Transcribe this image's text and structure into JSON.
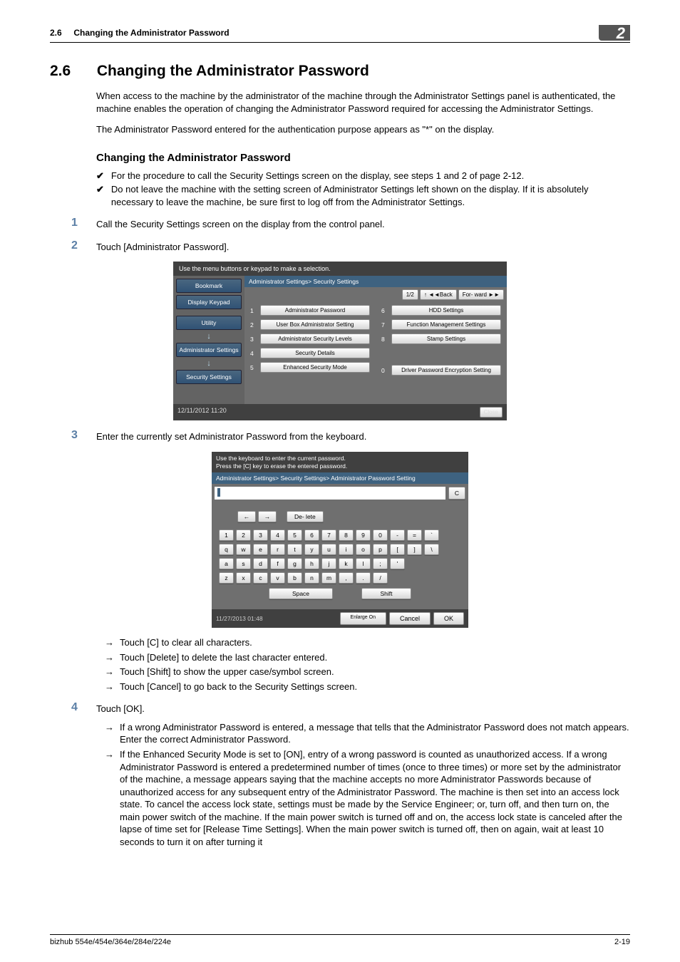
{
  "header": {
    "section_num": "2.6",
    "section_label": "Changing the Administrator Password",
    "chapter": "2"
  },
  "title": {
    "num": "2.6",
    "text": "Changing the Administrator Password"
  },
  "intro1": "When access to the machine by the administrator of the machine through the Administrator Settings panel is authenticated, the machine enables the operation of changing the Administrator Password required for accessing the Administrator Settings.",
  "intro2": "The Administrator Password entered for the authentication purpose appears as \"*\" on the display.",
  "subhead": "Changing the Administrator Password",
  "checks": [
    "For the procedure to call the Security Settings screen on the display, see steps 1 and 2 of page 2-12.",
    "Do not leave the machine with the setting screen of Administrator Settings left shown on the display. If it is absolutely necessary to leave the machine, be sure first to log off from the Administrator Settings."
  ],
  "steps": {
    "s1": "Call the Security Settings screen on the display from the control panel.",
    "s2": "Touch [Administrator Password].",
    "s3": "Enter the currently set Administrator Password from the keyboard.",
    "s4": "Touch [OK]."
  },
  "sub3": [
    "Touch [C] to clear all characters.",
    "Touch [Delete] to delete the last character entered.",
    "Touch [Shift] to show the upper case/symbol screen.",
    "Touch [Cancel] to go back to the Security Settings screen."
  ],
  "sub4": [
    "If a wrong Administrator Password is entered, a message that tells that the Administrator Password does not match appears. Enter the correct Administrator Password.",
    "If the Enhanced Security Mode is set to [ON], entry of a wrong password is counted as unauthorized access. If a wrong Administrator Password is entered a predetermined number of times (once to three times) or more set by the administrator of the machine, a message appears saying that the machine accepts no more Administrator Passwords because of unauthorized access for any subsequent entry of the Administrator Password. The machine is then set into an access lock state. To cancel the access lock state, settings must be made by the Service Engineer; or, turn off, and then turn on, the main power switch of the machine. If the main power switch is turned off and on, the access lock state is canceled after the lapse of time set for [Release Time Settings]. When the main power switch is turned off, then on again, wait at least 10 seconds to turn it on after turning it"
  ],
  "shot1": {
    "topbar": "Use the menu buttons or keypad to make a selection.",
    "tabs": {
      "bookmark": "Bookmark",
      "display_keypad": "Display Keypad",
      "utility": "Utility",
      "admin": "Administrator Settings",
      "security": "Security Settings"
    },
    "path": "Administrator Settings> Security Settings",
    "nav": {
      "page": "1/2",
      "back": "↑ ◄◄Back",
      "fwd": "For-\nward ►►"
    },
    "menu_left": [
      {
        "n": "1",
        "t": "Administrator Password"
      },
      {
        "n": "2",
        "t": "User Box Administrator\nSetting"
      },
      {
        "n": "3",
        "t": "Administrator Security\nLevels"
      },
      {
        "n": "4",
        "t": "Security Details"
      },
      {
        "n": "5",
        "t": "Enhanced Security Mode"
      }
    ],
    "menu_right": [
      {
        "n": "6",
        "t": "HDD Settings"
      },
      {
        "n": "7",
        "t": "Function Management Settings"
      },
      {
        "n": "8",
        "t": "Stamp Settings"
      },
      {
        "n": "0",
        "t": "Driver Password\nEncryption Setting"
      }
    ],
    "datetime": "12/11/2012    11:20",
    "close": "Close"
  },
  "shot2": {
    "top1": "Use the keyboard to enter the current password.",
    "top2": "Press the [C] key to erase the entered password.",
    "path": "Administrator Settings> Security Settings> Administrator Password Setting",
    "c_btn": "C",
    "nav": {
      "left": "←",
      "right": "→",
      "delete": "De-\nlete"
    },
    "row1": [
      "1",
      "2",
      "3",
      "4",
      "5",
      "6",
      "7",
      "8",
      "9",
      "0",
      "-",
      "=",
      "`"
    ],
    "row2": [
      "q",
      "w",
      "e",
      "r",
      "t",
      "y",
      "u",
      "i",
      "o",
      "p",
      "[",
      "]",
      "\\"
    ],
    "row3": [
      "a",
      "s",
      "d",
      "f",
      "g",
      "h",
      "j",
      "k",
      "l",
      ";",
      "'"
    ],
    "row4": [
      "z",
      "x",
      "c",
      "v",
      "b",
      "n",
      "m",
      ",",
      ".",
      "/"
    ],
    "space": "Space",
    "shift": "Shift",
    "datetime": "11/27/2013    01:48",
    "enlarge": "Enlarge\nOn",
    "cancel": "Cancel",
    "ok": "OK"
  },
  "footer": {
    "left": "bizhub 554e/454e/364e/284e/224e",
    "right": "2-19"
  }
}
